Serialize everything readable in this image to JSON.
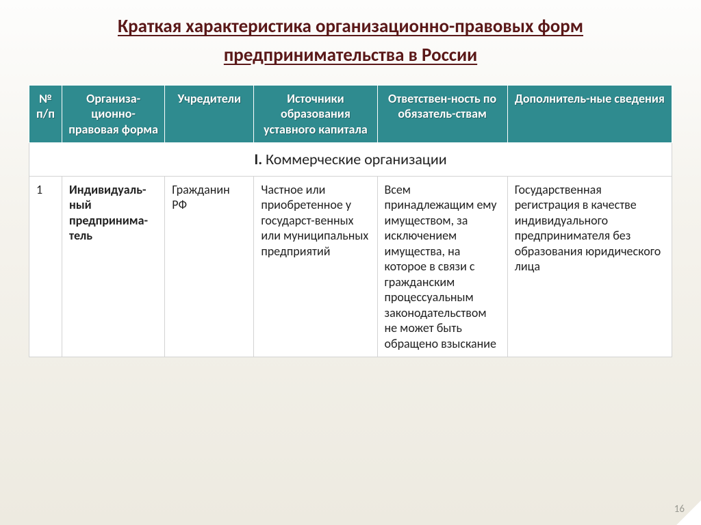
{
  "title_line1": "Краткая характеристика организационно-правовых форм",
  "title_line2": "предпринимательства в России",
  "headers": {
    "num": "№ п/п",
    "form": "Организа-ционно-правовая форма",
    "founders": "Учредители",
    "sources": "Источники образования уставного капитала",
    "liability": "Ответствен-ность по обязатель-ствам",
    "additional": "Дополнитель-ные сведения"
  },
  "section_prefix": "I.",
  "section_title": " Коммерческие организации",
  "rows": [
    {
      "num": "1",
      "form": "Индивидуаль-ный предпринима-тель",
      "founders": "Гражданин РФ",
      "sources": "Частное или приобретенное у государст-венных или муниципальных предприятий",
      "liability": "Всем принадлежащим ему имуществом, за исключением имущества, на которое в связи с гражданским процессуальным законодательством не может быть обращено взыскание",
      "additional": "Государственная регистрация в качестве индивидуального предпринимателя без образования юридического лица"
    }
  ],
  "page_number": "16",
  "colors": {
    "header_bg": "#2f8b8f",
    "title_color": "#5a1818"
  }
}
